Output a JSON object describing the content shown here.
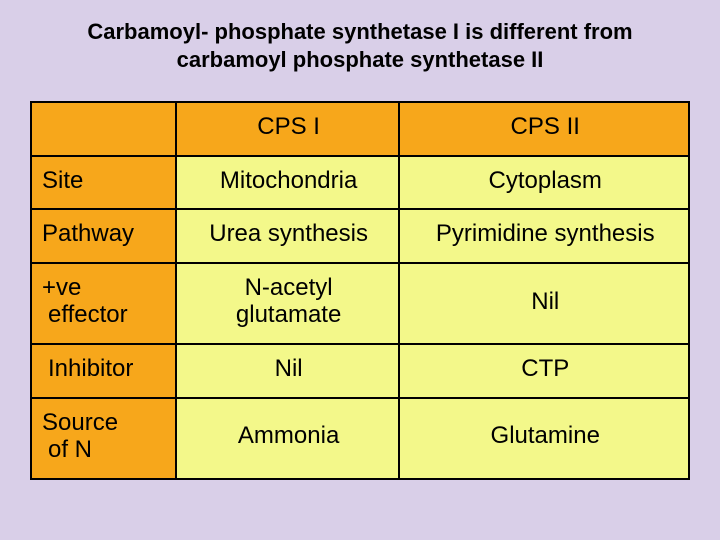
{
  "title_line1": "Carbamoyl- phosphate synthetase I is different from",
  "title_line2": "carbamoyl phosphate synthetase II",
  "colors": {
    "background": "#d9cfe8",
    "header_bg": "#f7a71b",
    "cell_bg": "#f3f88a",
    "border": "#000000",
    "text": "#000000"
  },
  "table": {
    "type": "table",
    "col_widths_pct": [
      22,
      34,
      44
    ],
    "header_fontsize": 24,
    "cell_fontsize": 24,
    "columns": [
      "",
      "CPS I",
      "CPS II"
    ],
    "rows": [
      {
        "label": "Site",
        "c1": "Mitochondria",
        "c2": "Cytoplasm"
      },
      {
        "label": "Pathway",
        "c1": "Urea synthesis",
        "c2": "Pyrimidine synthesis"
      },
      {
        "label_a": "+ve",
        "label_b": "effector",
        "c1_a": "N-acetyl",
        "c1_b": "glutamate",
        "c2": "Nil"
      },
      {
        "label": "Inhibitor",
        "c1": "Nil",
        "c2": "CTP"
      },
      {
        "label_a": "Source",
        "label_b": "of N",
        "c1": "Ammonia",
        "c2": "Glutamine"
      }
    ]
  }
}
